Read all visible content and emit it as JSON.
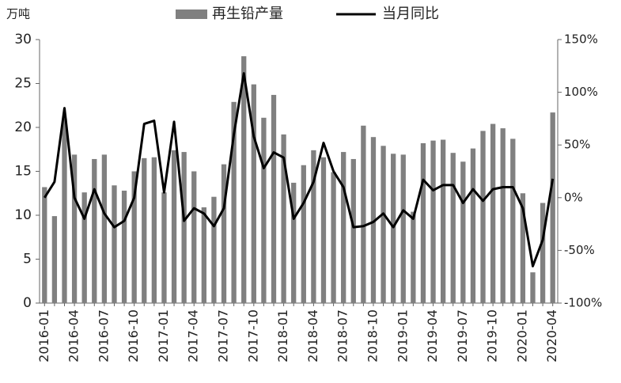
{
  "chart_data": {
    "type": "bar-line",
    "y_label": "万吨",
    "categories": [
      "2016-01",
      null,
      null,
      "2016-04",
      null,
      null,
      "2016-07",
      null,
      null,
      "2016-10",
      null,
      null,
      "2017-01",
      null,
      null,
      "2017-04",
      null,
      null,
      "2017-07",
      null,
      null,
      "2017-10",
      null,
      null,
      "2018-01",
      null,
      null,
      "2018-04",
      null,
      null,
      "2018-07",
      null,
      null,
      "2018-10",
      null,
      null,
      "2019-01",
      null,
      null,
      "2019-04",
      null,
      null,
      "2019-07",
      null,
      null,
      "2019-10",
      null,
      null,
      "2020-01",
      null,
      null,
      "2020-04"
    ],
    "series": [
      {
        "name": "再生铅产量",
        "color": "#808080",
        "type": "bar",
        "values": [
          13.2,
          9.9,
          21.0,
          16.9,
          12.6,
          16.4,
          16.9,
          13.4,
          12.8,
          15.0,
          16.5,
          16.6,
          12.6,
          17.4,
          17.2,
          15.0,
          10.9,
          12.1,
          15.8,
          22.9,
          28.1,
          24.9,
          21.1,
          23.7,
          19.2,
          13.7,
          15.7,
          17.4,
          16.6,
          14.9,
          17.2,
          16.4,
          20.2,
          18.9,
          17.9,
          17.0,
          16.9,
          10.4,
          18.2,
          18.5,
          18.6,
          17.1,
          16.1,
          17.6,
          19.6,
          20.4,
          19.9,
          18.7,
          12.5,
          3.5,
          11.4,
          21.7
        ]
      },
      {
        "name": "当月同比",
        "color": "#000000",
        "type": "line",
        "axis": "y2",
        "values": [
          0,
          15,
          85,
          0,
          -20,
          8,
          -15,
          -28,
          -22,
          0,
          70,
          73,
          5,
          72,
          -22,
          -10,
          -15,
          -27,
          -10,
          60,
          118,
          58,
          28,
          43,
          38,
          -20,
          -5,
          15,
          52,
          25,
          10,
          -28,
          -27,
          -23,
          -15,
          -28,
          -12,
          -20,
          17,
          7,
          12,
          12,
          -5,
          8,
          -3,
          8,
          10,
          10,
          -10,
          -65,
          -40,
          18
        ]
      }
    ],
    "ylim": [
      0,
      30
    ],
    "yticks": [
      0,
      5,
      10,
      15,
      20,
      25,
      30
    ],
    "y2lim": [
      -100,
      150
    ],
    "y2ticks": [
      {
        "value": -100,
        "label": "-100%"
      },
      {
        "value": -50,
        "label": "-50%"
      },
      {
        "value": 0,
        "label": "0%"
      },
      {
        "value": 50,
        "label": "50%"
      },
      {
        "value": 100,
        "label": "100%"
      },
      {
        "value": 150,
        "label": "150%"
      }
    ],
    "legend": "top"
  }
}
